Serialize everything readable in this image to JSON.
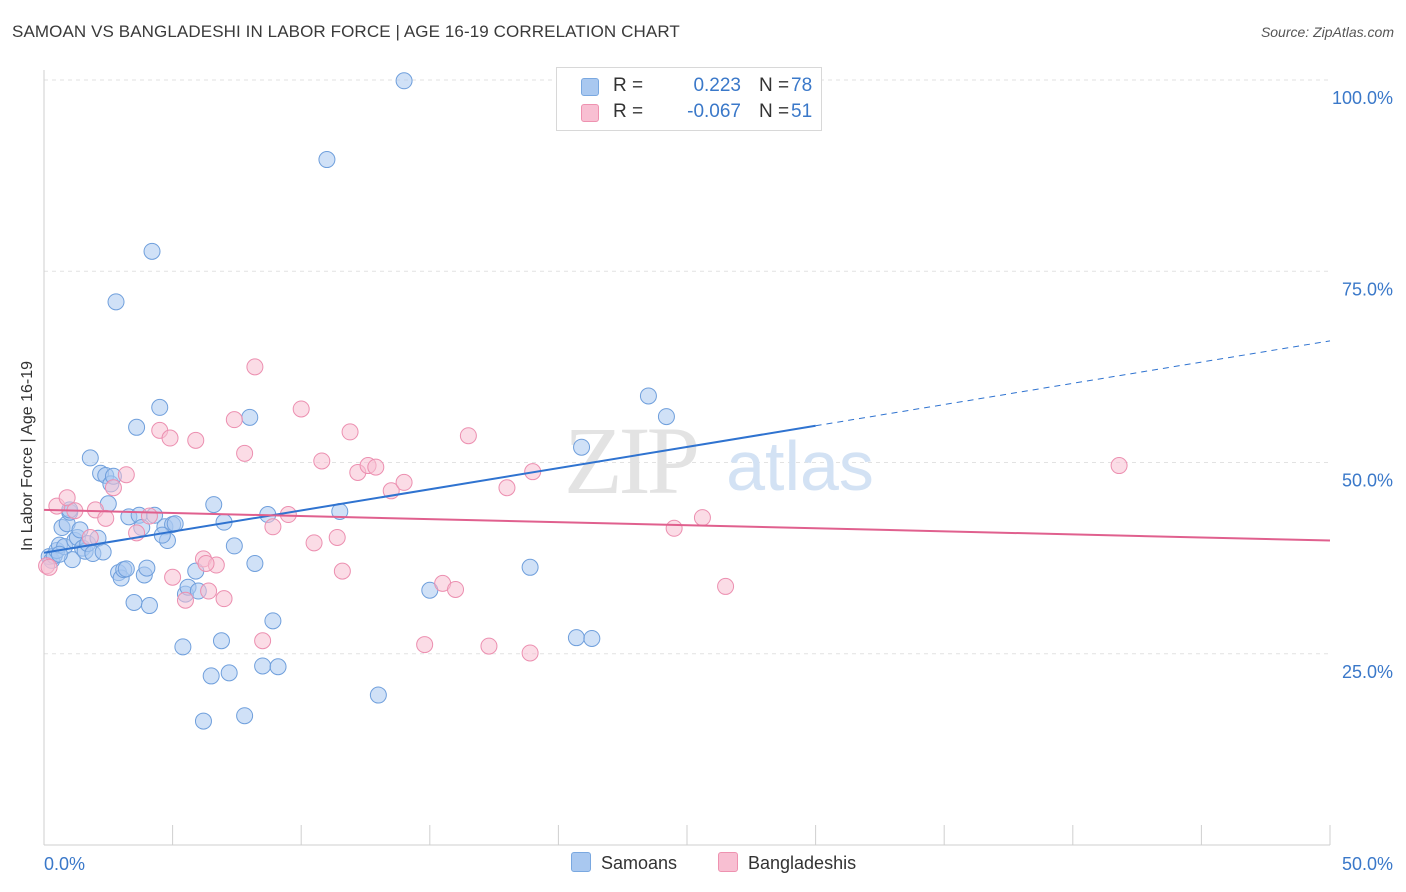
{
  "title": "SAMOAN VS BANGLADESHI IN LABOR FORCE | AGE 16-19 CORRELATION CHART",
  "source": "Source: ZipAtlas.com",
  "watermark": {
    "zip": "ZIP",
    "atlas": "atlas"
  },
  "legend_stats": [
    {
      "r_label": "R =",
      "r_value": "0.223",
      "n_label": "N =",
      "n_value": "78",
      "color": "#a9c8f0",
      "border": "#7aa8e0"
    },
    {
      "r_label": "R =",
      "r_value": "-0.067",
      "n_label": "N =",
      "n_value": "51",
      "color": "#f8bfd2",
      "border": "#ee92b0"
    }
  ],
  "bottom_legend": [
    {
      "label": "Samoans",
      "color": "#a9c8f0",
      "border": "#7aa8e0"
    },
    {
      "label": "Bangladeshis",
      "color": "#f8bfd2",
      "border": "#ee92b0"
    }
  ],
  "chart_data": {
    "type": "scatter",
    "xlabel": "",
    "ylabel": "In Labor Force | Age 16-19",
    "xlim": [
      0,
      50
    ],
    "ylim": [
      0,
      102
    ],
    "x_tick_labels": [
      {
        "value": 0,
        "label": "0.0%"
      },
      {
        "value": 50,
        "label": "50.0%"
      }
    ],
    "y_tick_labels": [
      {
        "value": 25,
        "label": "25.0%"
      },
      {
        "value": 50,
        "label": "50.0%"
      },
      {
        "value": 75,
        "label": "75.0%"
      },
      {
        "value": 100,
        "label": "100.0%"
      }
    ],
    "grid": true,
    "series": [
      {
        "name": "Samoans",
        "color": "#a9c8f0",
        "stroke": "#6f9fdc",
        "trend": {
          "color": "#2f73d0",
          "x0": 0,
          "y0": 38.2,
          "x1": 30,
          "y1": 54.8,
          "dash_x_end": 50,
          "dash_y_end": 65.9
        },
        "points": [
          [
            0.2,
            37.7
          ],
          [
            0.3,
            37.2
          ],
          [
            0.4,
            37.8
          ],
          [
            0.5,
            38.5
          ],
          [
            0.6,
            39.2
          ],
          [
            0.7,
            41.5
          ],
          [
            0.8,
            39.0
          ],
          [
            0.9,
            42.0
          ],
          [
            1.0,
            43.5
          ],
          [
            1.1,
            37.3
          ],
          [
            1.2,
            39.8
          ],
          [
            1.3,
            40.2
          ],
          [
            1.4,
            41.2
          ],
          [
            1.5,
            38.8
          ],
          [
            1.6,
            38.4
          ],
          [
            1.7,
            39.4
          ],
          [
            1.8,
            50.6
          ],
          [
            1.9,
            38.1
          ],
          [
            2.1,
            40.1
          ],
          [
            2.2,
            48.6
          ],
          [
            2.3,
            38.3
          ],
          [
            2.4,
            48.3
          ],
          [
            2.5,
            44.6
          ],
          [
            2.6,
            47.2
          ],
          [
            2.8,
            71.0
          ],
          [
            2.9,
            35.6
          ],
          [
            3.0,
            34.9
          ],
          [
            3.1,
            36.0
          ],
          [
            3.3,
            42.9
          ],
          [
            3.5,
            31.7
          ],
          [
            3.6,
            54.6
          ],
          [
            3.7,
            43.1
          ],
          [
            3.8,
            41.5
          ],
          [
            3.9,
            35.3
          ],
          [
            4.0,
            36.2
          ],
          [
            4.1,
            31.3
          ],
          [
            4.2,
            77.6
          ],
          [
            4.3,
            43.1
          ],
          [
            4.5,
            57.2
          ],
          [
            4.7,
            41.6
          ],
          [
            4.8,
            39.8
          ],
          [
            5.0,
            41.9
          ],
          [
            5.1,
            42.0
          ],
          [
            5.4,
            25.9
          ],
          [
            5.5,
            32.8
          ],
          [
            5.6,
            33.7
          ],
          [
            5.9,
            35.8
          ],
          [
            6.0,
            33.2
          ],
          [
            6.2,
            16.2
          ],
          [
            6.5,
            22.1
          ],
          [
            6.6,
            44.5
          ],
          [
            6.9,
            26.7
          ],
          [
            7.0,
            42.2
          ],
          [
            7.2,
            22.5
          ],
          [
            7.4,
            39.1
          ],
          [
            7.8,
            16.9
          ],
          [
            8.0,
            55.9
          ],
          [
            8.2,
            36.8
          ],
          [
            8.5,
            23.4
          ],
          [
            8.7,
            43.2
          ],
          [
            8.9,
            29.3
          ],
          [
            9.1,
            23.3
          ],
          [
            11.0,
            89.6
          ],
          [
            11.5,
            43.6
          ],
          [
            13.0,
            19.6
          ],
          [
            14.0,
            99.9
          ],
          [
            15.0,
            33.3
          ],
          [
            18.9,
            36.3
          ],
          [
            20.7,
            27.1
          ],
          [
            21.3,
            27.0
          ],
          [
            23.5,
            58.7
          ],
          [
            24.2,
            56.0
          ],
          [
            20.9,
            52.0
          ],
          [
            2.7,
            48.2
          ],
          [
            1.0,
            43.8
          ],
          [
            0.6,
            38.0
          ],
          [
            3.2,
            36.1
          ],
          [
            4.6,
            40.5
          ]
        ]
      },
      {
        "name": "Bangladeshis",
        "color": "#f8bfd2",
        "stroke": "#ec8fb0",
        "trend": {
          "color": "#e0608e",
          "x0": 0,
          "y0": 43.8,
          "x1": 50,
          "y1": 39.8
        },
        "points": [
          [
            0.1,
            36.5
          ],
          [
            0.2,
            36.3
          ],
          [
            0.5,
            44.3
          ],
          [
            0.9,
            45.4
          ],
          [
            1.2,
            43.7
          ],
          [
            1.8,
            40.2
          ],
          [
            2.0,
            43.8
          ],
          [
            2.4,
            42.7
          ],
          [
            2.7,
            46.7
          ],
          [
            3.2,
            48.4
          ],
          [
            3.6,
            40.8
          ],
          [
            4.1,
            43.0
          ],
          [
            4.5,
            54.2
          ],
          [
            4.9,
            53.2
          ],
          [
            5.0,
            35.0
          ],
          [
            5.5,
            32.0
          ],
          [
            5.9,
            52.9
          ],
          [
            6.2,
            37.4
          ],
          [
            6.4,
            33.2
          ],
          [
            6.7,
            36.6
          ],
          [
            7.0,
            32.2
          ],
          [
            7.4,
            55.6
          ],
          [
            7.8,
            51.2
          ],
          [
            8.2,
            62.5
          ],
          [
            8.5,
            26.7
          ],
          [
            8.9,
            41.6
          ],
          [
            9.5,
            43.2
          ],
          [
            10.0,
            57.0
          ],
          [
            10.5,
            39.5
          ],
          [
            10.8,
            50.2
          ],
          [
            11.4,
            40.2
          ],
          [
            11.6,
            35.8
          ],
          [
            11.9,
            54.0
          ],
          [
            12.2,
            48.7
          ],
          [
            12.6,
            49.6
          ],
          [
            12.9,
            49.4
          ],
          [
            13.5,
            46.3
          ],
          [
            14.0,
            47.4
          ],
          [
            14.8,
            26.2
          ],
          [
            15.5,
            34.2
          ],
          [
            16.0,
            33.4
          ],
          [
            16.5,
            53.5
          ],
          [
            17.3,
            26.0
          ],
          [
            18.0,
            46.7
          ],
          [
            18.9,
            25.1
          ],
          [
            19.0,
            48.8
          ],
          [
            24.5,
            41.4
          ],
          [
            25.6,
            42.8
          ],
          [
            26.5,
            33.8
          ],
          [
            41.8,
            49.6
          ],
          [
            6.3,
            36.8
          ]
        ]
      }
    ]
  }
}
